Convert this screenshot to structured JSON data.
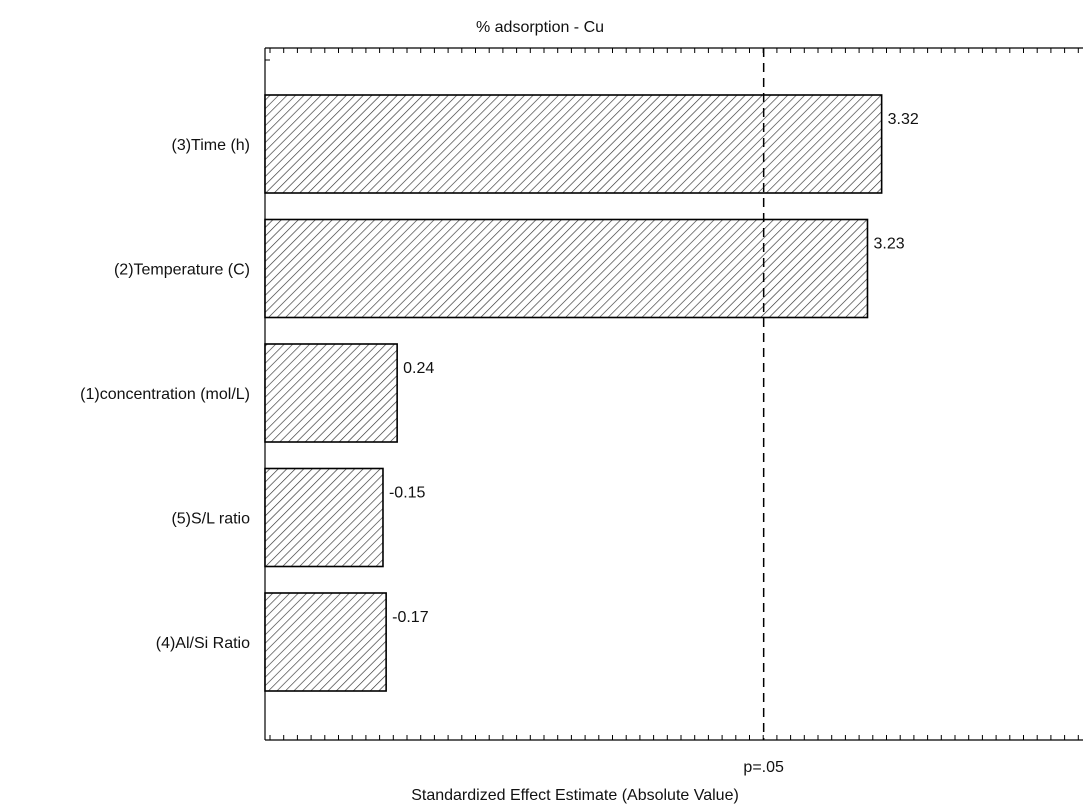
{
  "chart_data": {
    "type": "bar",
    "orientation": "horizontal",
    "title": "% adsorption - Cu",
    "xlabel": "Standardized Effect Estimate (Absolute Value)",
    "ylabel": "",
    "categories": [
      "(3)Time (h)",
      "(2)Temperature (C)",
      "(1)concentration (mol/L)",
      "(5)S/L ratio",
      "(4)Al/Si Ratio"
    ],
    "values": [
      3.32,
      3.23,
      0.24,
      -0.15,
      -0.17
    ],
    "value_labels": [
      "3.32",
      "3.23",
      "0.24",
      "-0.15",
      "-0.17"
    ],
    "xlim": [
      -0.6,
      4.6
    ],
    "reference_line": {
      "value": 2.57,
      "label": "p=.05",
      "style": "dashed"
    },
    "bar_fill": "diagonal hatch",
    "grid": false,
    "legend": "none"
  }
}
